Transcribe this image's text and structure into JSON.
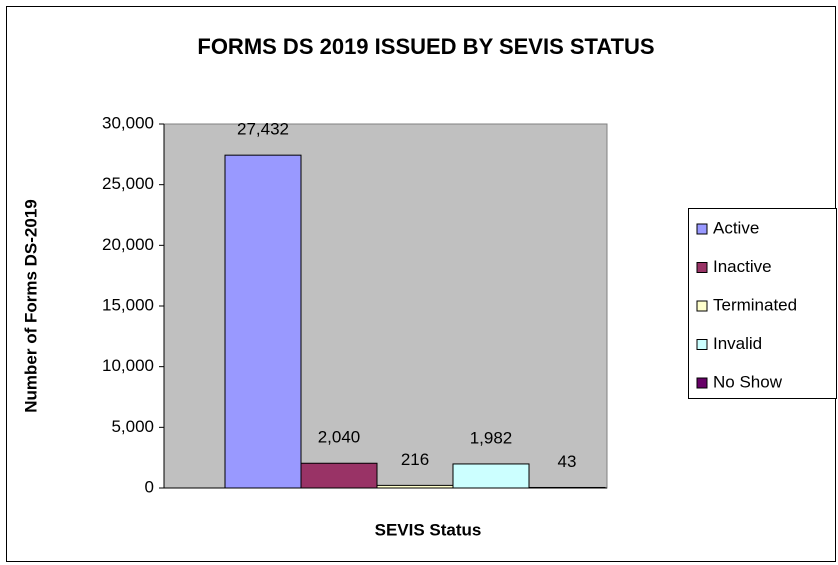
{
  "chart_data": {
    "type": "bar",
    "title": "FORMS DS 2019 ISSUED BY SEVIS STATUS",
    "x_label": "SEVIS Status",
    "y_label": "Number of Forms DS-2019",
    "categories": [
      null
    ],
    "series": [
      {
        "name": "Active",
        "color": "#9999ff",
        "values": [
          27432
        ],
        "value_labels": [
          "27,432"
        ]
      },
      {
        "name": "Inactive",
        "color": "#993366",
        "values": [
          2040
        ],
        "value_labels": [
          "2,040"
        ]
      },
      {
        "name": "Terminated",
        "color": "#ffffcc",
        "values": [
          216
        ],
        "value_labels": [
          "216"
        ]
      },
      {
        "name": "Invalid",
        "color": "#ccffff",
        "values": [
          1982
        ],
        "value_labels": [
          "1,982"
        ]
      },
      {
        "name": "No Show",
        "color": "#660066",
        "values": [
          43
        ],
        "value_labels": [
          "43"
        ]
      }
    ],
    "ylim": [
      0,
      30000
    ],
    "yticks": [
      0,
      {
        "value": 5000,
        "label": "5,000"
      },
      {
        "value": 10000,
        "label": "10,000"
      },
      {
        "value": 15000,
        "label": "15,000"
      },
      {
        "value": 20000,
        "label": "20,000"
      },
      {
        "value": 25000,
        "label": "25,000"
      },
      {
        "value": 30000,
        "label": "30,000"
      }
    ],
    "plot_background": "#c0c0c0",
    "legend": "right"
  }
}
